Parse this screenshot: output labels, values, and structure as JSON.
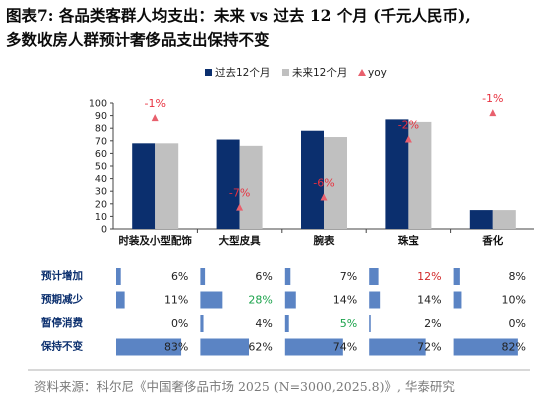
{
  "title": {
    "line1": "图表7:  各品类客群人均支出：未来 vs 过去 12 个月 (千元人民币),",
    "line2": "多数收房人群预计奢侈品支出保持不变"
  },
  "source": "资料来源：科尔尼《中国奢侈品市场 2025 (N=3000,2025.8)》, 华泰研究",
  "colors": {
    "past": "#0b2f6e",
    "future": "#c0c0c0",
    "yoy": "#e8606d",
    "yoy_text_red": "#e8313f",
    "table_bar": "#5b84c4",
    "cell_default": "#222222",
    "cell_red": "#d12a2a",
    "cell_green": "#1aa24a",
    "row_label": "#0b2f6e"
  },
  "chart_data": {
    "type": "bar",
    "categories": [
      "时装及小型配饰",
      "大型皮具",
      "腕表",
      "珠宝",
      "香化"
    ],
    "series": [
      {
        "name": "过去12个月",
        "values": [
          68,
          71,
          78,
          87,
          15
        ]
      },
      {
        "name": "未来12个月",
        "values": [
          68,
          66,
          73,
          85,
          15
        ]
      }
    ],
    "yoy": {
      "name": "yoy",
      "values": [
        -1,
        -7,
        -6,
        -2,
        -1
      ],
      "labels": [
        "-1%",
        "-7%",
        "-6%",
        "-2%",
        "-1%"
      ],
      "marker_y": [
        88,
        17,
        25,
        71,
        92
      ]
    },
    "ylim": [
      0,
      100
    ],
    "yticks": [
      0,
      10,
      20,
      30,
      40,
      50,
      60,
      70,
      80,
      90,
      100
    ],
    "legend_position": "top",
    "grid": false
  },
  "table": {
    "rows": [
      {
        "label": "预计增加",
        "values": [
          6,
          6,
          7,
          12,
          8
        ],
        "texts": [
          "6%",
          "6%",
          "7%",
          "12%",
          "8%"
        ],
        "colors": [
          "default",
          "default",
          "default",
          "red",
          "default"
        ]
      },
      {
        "label": "预期减少",
        "values": [
          11,
          28,
          14,
          14,
          10
        ],
        "texts": [
          "11%",
          "28%",
          "14%",
          "14%",
          "10%"
        ],
        "colors": [
          "default",
          "green",
          "default",
          "default",
          "default"
        ]
      },
      {
        "label": "暂停消费",
        "values": [
          0,
          4,
          5,
          2,
          0
        ],
        "texts": [
          "0%",
          "4%",
          "5%",
          "2%",
          "0%"
        ],
        "colors": [
          "default",
          "default",
          "green",
          "default",
          "default"
        ]
      },
      {
        "label": "保持不变",
        "values": [
          83,
          62,
          74,
          72,
          82
        ],
        "texts": [
          "83%",
          "62%",
          "74%",
          "72%",
          "82%"
        ],
        "colors": [
          "default",
          "default",
          "default",
          "default",
          "default"
        ]
      }
    ]
  }
}
